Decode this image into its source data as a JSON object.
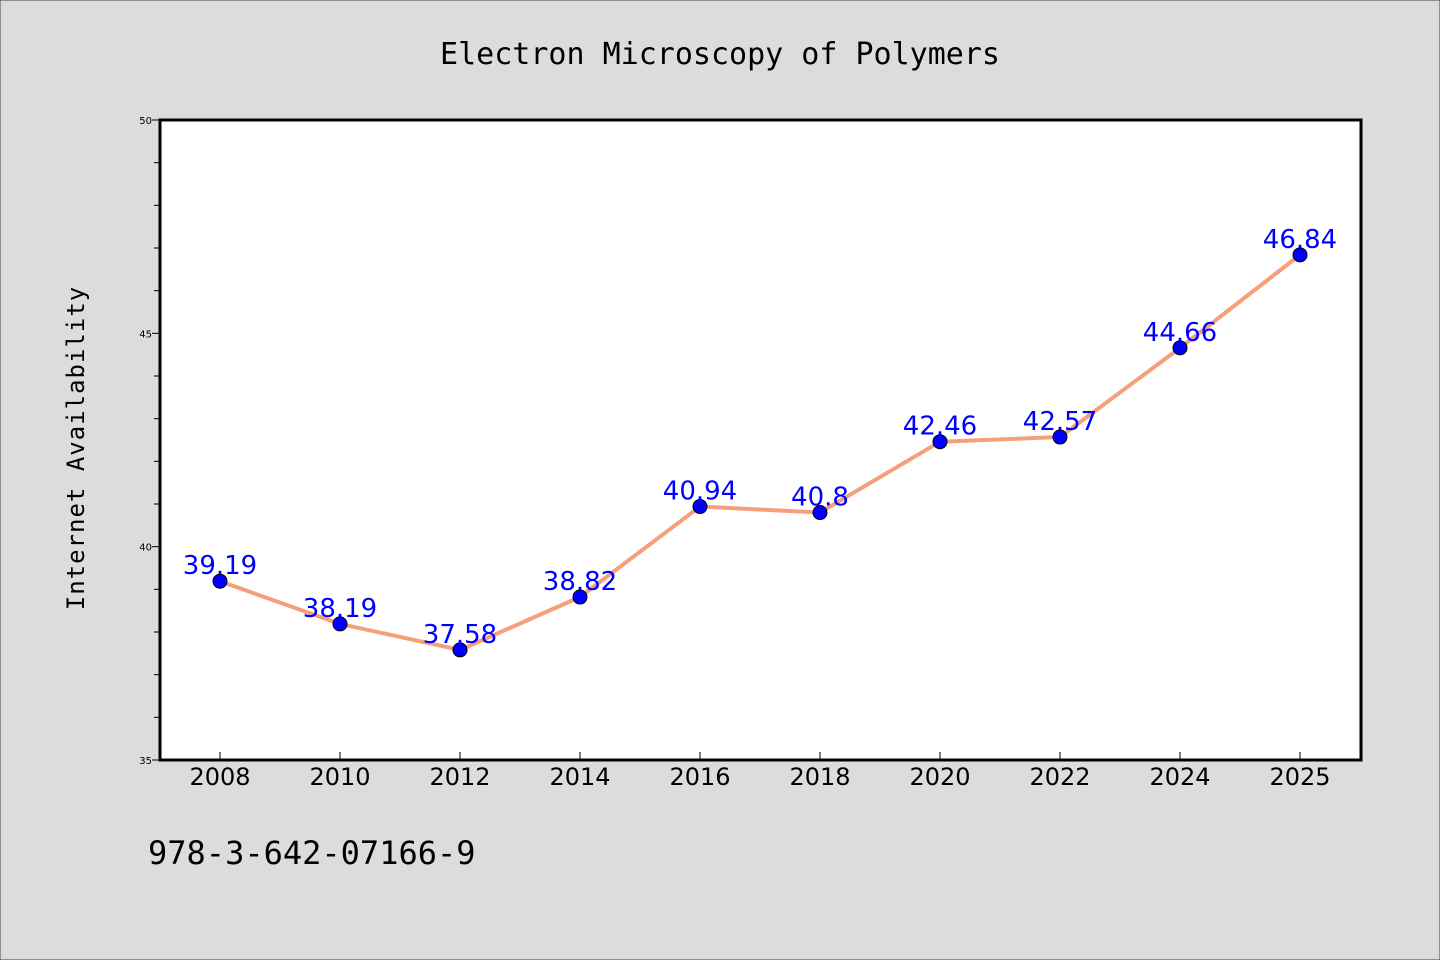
{
  "chart_data": {
    "type": "line",
    "title": "Electron Microscopy of Polymers",
    "xlabel": "",
    "ylabel": "Internet Availability",
    "categories": [
      "2008",
      "2010",
      "2012",
      "2014",
      "2016",
      "2018",
      "2020",
      "2022",
      "2024",
      "2025"
    ],
    "series": [
      {
        "values": [
          39.19,
          38.19,
          37.58,
          38.82,
          40.94,
          40.8,
          42.46,
          42.57,
          44.66,
          46.84
        ],
        "labels": [
          "39.19",
          "38.19",
          "37.58",
          "38.82",
          "40.94",
          "40.8",
          "42.46",
          "42.57",
          "44.66",
          "46.84"
        ]
      }
    ],
    "ylim": [
      35,
      50
    ],
    "yticks": [
      "35",
      "40",
      "45",
      "50"
    ],
    "grid": false,
    "legend": "none",
    "colors": {
      "background": "#dcdcdc",
      "plot_background": "#ffffff",
      "line": "#f5a07a",
      "marker": "#0000ff",
      "data_label": "#0000ff"
    }
  },
  "footer_text": "978-3-642-07166-9"
}
